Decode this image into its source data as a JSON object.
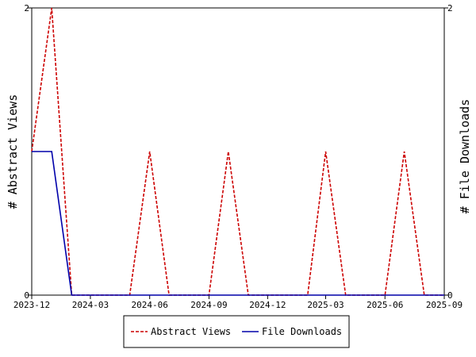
{
  "chart_data": {
    "type": "line",
    "x": [
      "2023-12-01",
      "2024-01-01",
      "2024-02-01",
      "2024-03-01",
      "2024-04-01",
      "2024-05-01",
      "2024-06-01",
      "2024-07-01",
      "2024-08-01",
      "2024-09-01",
      "2024-10-01",
      "2024-11-01",
      "2024-12-01",
      "2025-01-01",
      "2025-02-01",
      "2025-03-01",
      "2025-04-01",
      "2025-05-01",
      "2025-06-01",
      "2025-07-01",
      "2025-08-01",
      "2025-09-01"
    ],
    "series": [
      {
        "name": "Abstract Views",
        "axis": "left",
        "color": "#cc0000",
        "style": "dashed",
        "values": [
          1,
          2,
          0,
          0,
          0,
          0,
          1,
          0,
          0,
          0,
          1,
          0,
          0,
          0,
          0,
          1,
          0,
          0,
          0,
          1,
          0,
          0
        ]
      },
      {
        "name": "File Downloads",
        "axis": "right",
        "color": "#0000aa",
        "style": "solid",
        "values": [
          1,
          1,
          0,
          0,
          0,
          0,
          0,
          0,
          0,
          0,
          0,
          0,
          0,
          0,
          0,
          0,
          0,
          0,
          0,
          0,
          0,
          0
        ]
      }
    ],
    "x_ticks": [
      "2023-12",
      "2024-03",
      "2024-06",
      "2024-09",
      "2024-12",
      "2025-03",
      "2025-06",
      "2025-09"
    ],
    "ylabel": "# Abstract Views",
    "y2label": "# File Downloads",
    "ylim": [
      0,
      2
    ],
    "y2lim": [
      0,
      2
    ],
    "y_ticks": [
      "0",
      "2"
    ],
    "y2_ticks": [
      "0",
      "2"
    ],
    "grid": false,
    "legend_position": "bottom"
  }
}
